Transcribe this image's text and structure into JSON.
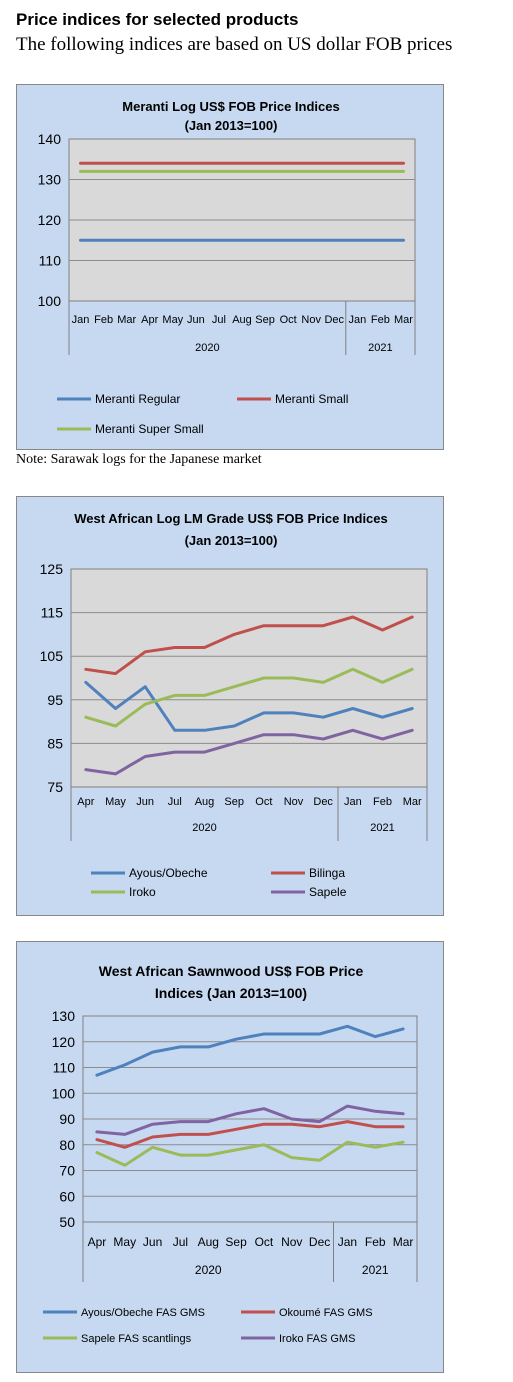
{
  "page": {
    "heading": "Price indices for selected products",
    "subheading": "The following indices are based on US dollar FOB prices",
    "note": "Note: Sarawak logs for the Japanese market"
  },
  "chart_data": [
    {
      "type": "line",
      "title": "Meranti Log US$ FOB Price Indices",
      "subtitle": "(Jan 2013=100)",
      "categories": [
        "Jan",
        "Feb",
        "Mar",
        "Apr",
        "May",
        "Jun",
        "Jul",
        "Aug",
        "Sep",
        "Oct",
        "Nov",
        "Dec",
        "Jan",
        "Feb",
        "Mar"
      ],
      "year_groups": [
        {
          "label": "2020",
          "count": 12
        },
        {
          "label": "2021",
          "count": 3
        }
      ],
      "ylim": [
        100,
        140
      ],
      "yticks": [
        100,
        110,
        120,
        130,
        140
      ],
      "plot_bg": "#d9d9d9",
      "grid": true,
      "legend": "bottom",
      "series": [
        {
          "name": "Meranti Regular",
          "color": "#4f81bd",
          "values": [
            115,
            115,
            115,
            115,
            115,
            115,
            115,
            115,
            115,
            115,
            115,
            115,
            115,
            115,
            115
          ]
        },
        {
          "name": "Meranti Small",
          "color": "#c0504d",
          "values": [
            134,
            134,
            134,
            134,
            134,
            134,
            134,
            134,
            134,
            134,
            134,
            134,
            134,
            134,
            134
          ]
        },
        {
          "name": "Meranti Super Small",
          "color": "#9bbb59",
          "values": [
            132,
            132,
            132,
            132,
            132,
            132,
            132,
            132,
            132,
            132,
            132,
            132,
            132,
            132,
            132
          ]
        }
      ]
    },
    {
      "type": "line",
      "title": "West African Log LM Grade US$ FOB Price Indices",
      "subtitle": "(Jan 2013=100)",
      "categories": [
        "Apr",
        "May",
        "Jun",
        "Jul",
        "Aug",
        "Sep",
        "Oct",
        "Nov",
        "Dec",
        "Jan",
        "Feb",
        "Mar"
      ],
      "year_groups": [
        {
          "label": "2020",
          "count": 9
        },
        {
          "label": "2021",
          "count": 3
        }
      ],
      "ylim": [
        75,
        125
      ],
      "yticks": [
        75,
        85,
        95,
        105,
        115,
        125
      ],
      "plot_bg": "#d9d9d9",
      "grid": true,
      "legend": "bottom",
      "series": [
        {
          "name": "Ayous/Obeche",
          "color": "#4f81bd",
          "values": [
            99,
            93,
            98,
            88,
            88,
            89,
            92,
            92,
            91,
            93,
            91,
            93
          ]
        },
        {
          "name": "Bilinga",
          "color": "#c0504d",
          "values": [
            102,
            101,
            106,
            107,
            107,
            110,
            112,
            112,
            112,
            114,
            111,
            114
          ]
        },
        {
          "name": "Iroko",
          "color": "#9bbb59",
          "values": [
            91,
            89,
            94,
            96,
            96,
            98,
            100,
            100,
            99,
            102,
            99,
            102
          ]
        },
        {
          "name": "Sapele",
          "color": "#8064a2",
          "values": [
            79,
            78,
            82,
            83,
            83,
            85,
            87,
            87,
            86,
            88,
            86,
            88
          ]
        }
      ]
    },
    {
      "type": "line",
      "title": "West African Sawnwood US$ FOB Price",
      "subtitle": "Indices (Jan 2013=100)",
      "categories": [
        "Apr",
        "May",
        "Jun",
        "Jul",
        "Aug",
        "Sep",
        "Oct",
        "Nov",
        "Dec",
        "Jan",
        "Feb",
        "Mar"
      ],
      "year_groups": [
        {
          "label": "2020",
          "count": 9
        },
        {
          "label": "2021",
          "count": 3
        }
      ],
      "ylim": [
        50,
        130
      ],
      "yticks": [
        50,
        60,
        70,
        80,
        90,
        100,
        110,
        120,
        130
      ],
      "plot_bg": "#c6d9f1",
      "grid": true,
      "legend": "bottom",
      "series": [
        {
          "name": "Ayous/Obeche FAS GMS",
          "color": "#4f81bd",
          "values": [
            107,
            111,
            116,
            118,
            118,
            121,
            123,
            123,
            123,
            126,
            122,
            125
          ]
        },
        {
          "name": "Okoumé FAS GMS",
          "color": "#c0504d",
          "values": [
            82,
            79,
            83,
            84,
            84,
            86,
            88,
            88,
            87,
            89,
            87,
            87
          ]
        },
        {
          "name": "Sapele FAS scantlings",
          "color": "#9bbb59",
          "values": [
            77,
            72,
            79,
            76,
            76,
            78,
            80,
            75,
            74,
            81,
            79,
            81
          ]
        },
        {
          "name": "Iroko FAS GMS",
          "color": "#8064a2",
          "values": [
            85,
            84,
            88,
            89,
            89,
            92,
            94,
            90,
            89,
            95,
            93,
            92
          ]
        }
      ]
    }
  ]
}
